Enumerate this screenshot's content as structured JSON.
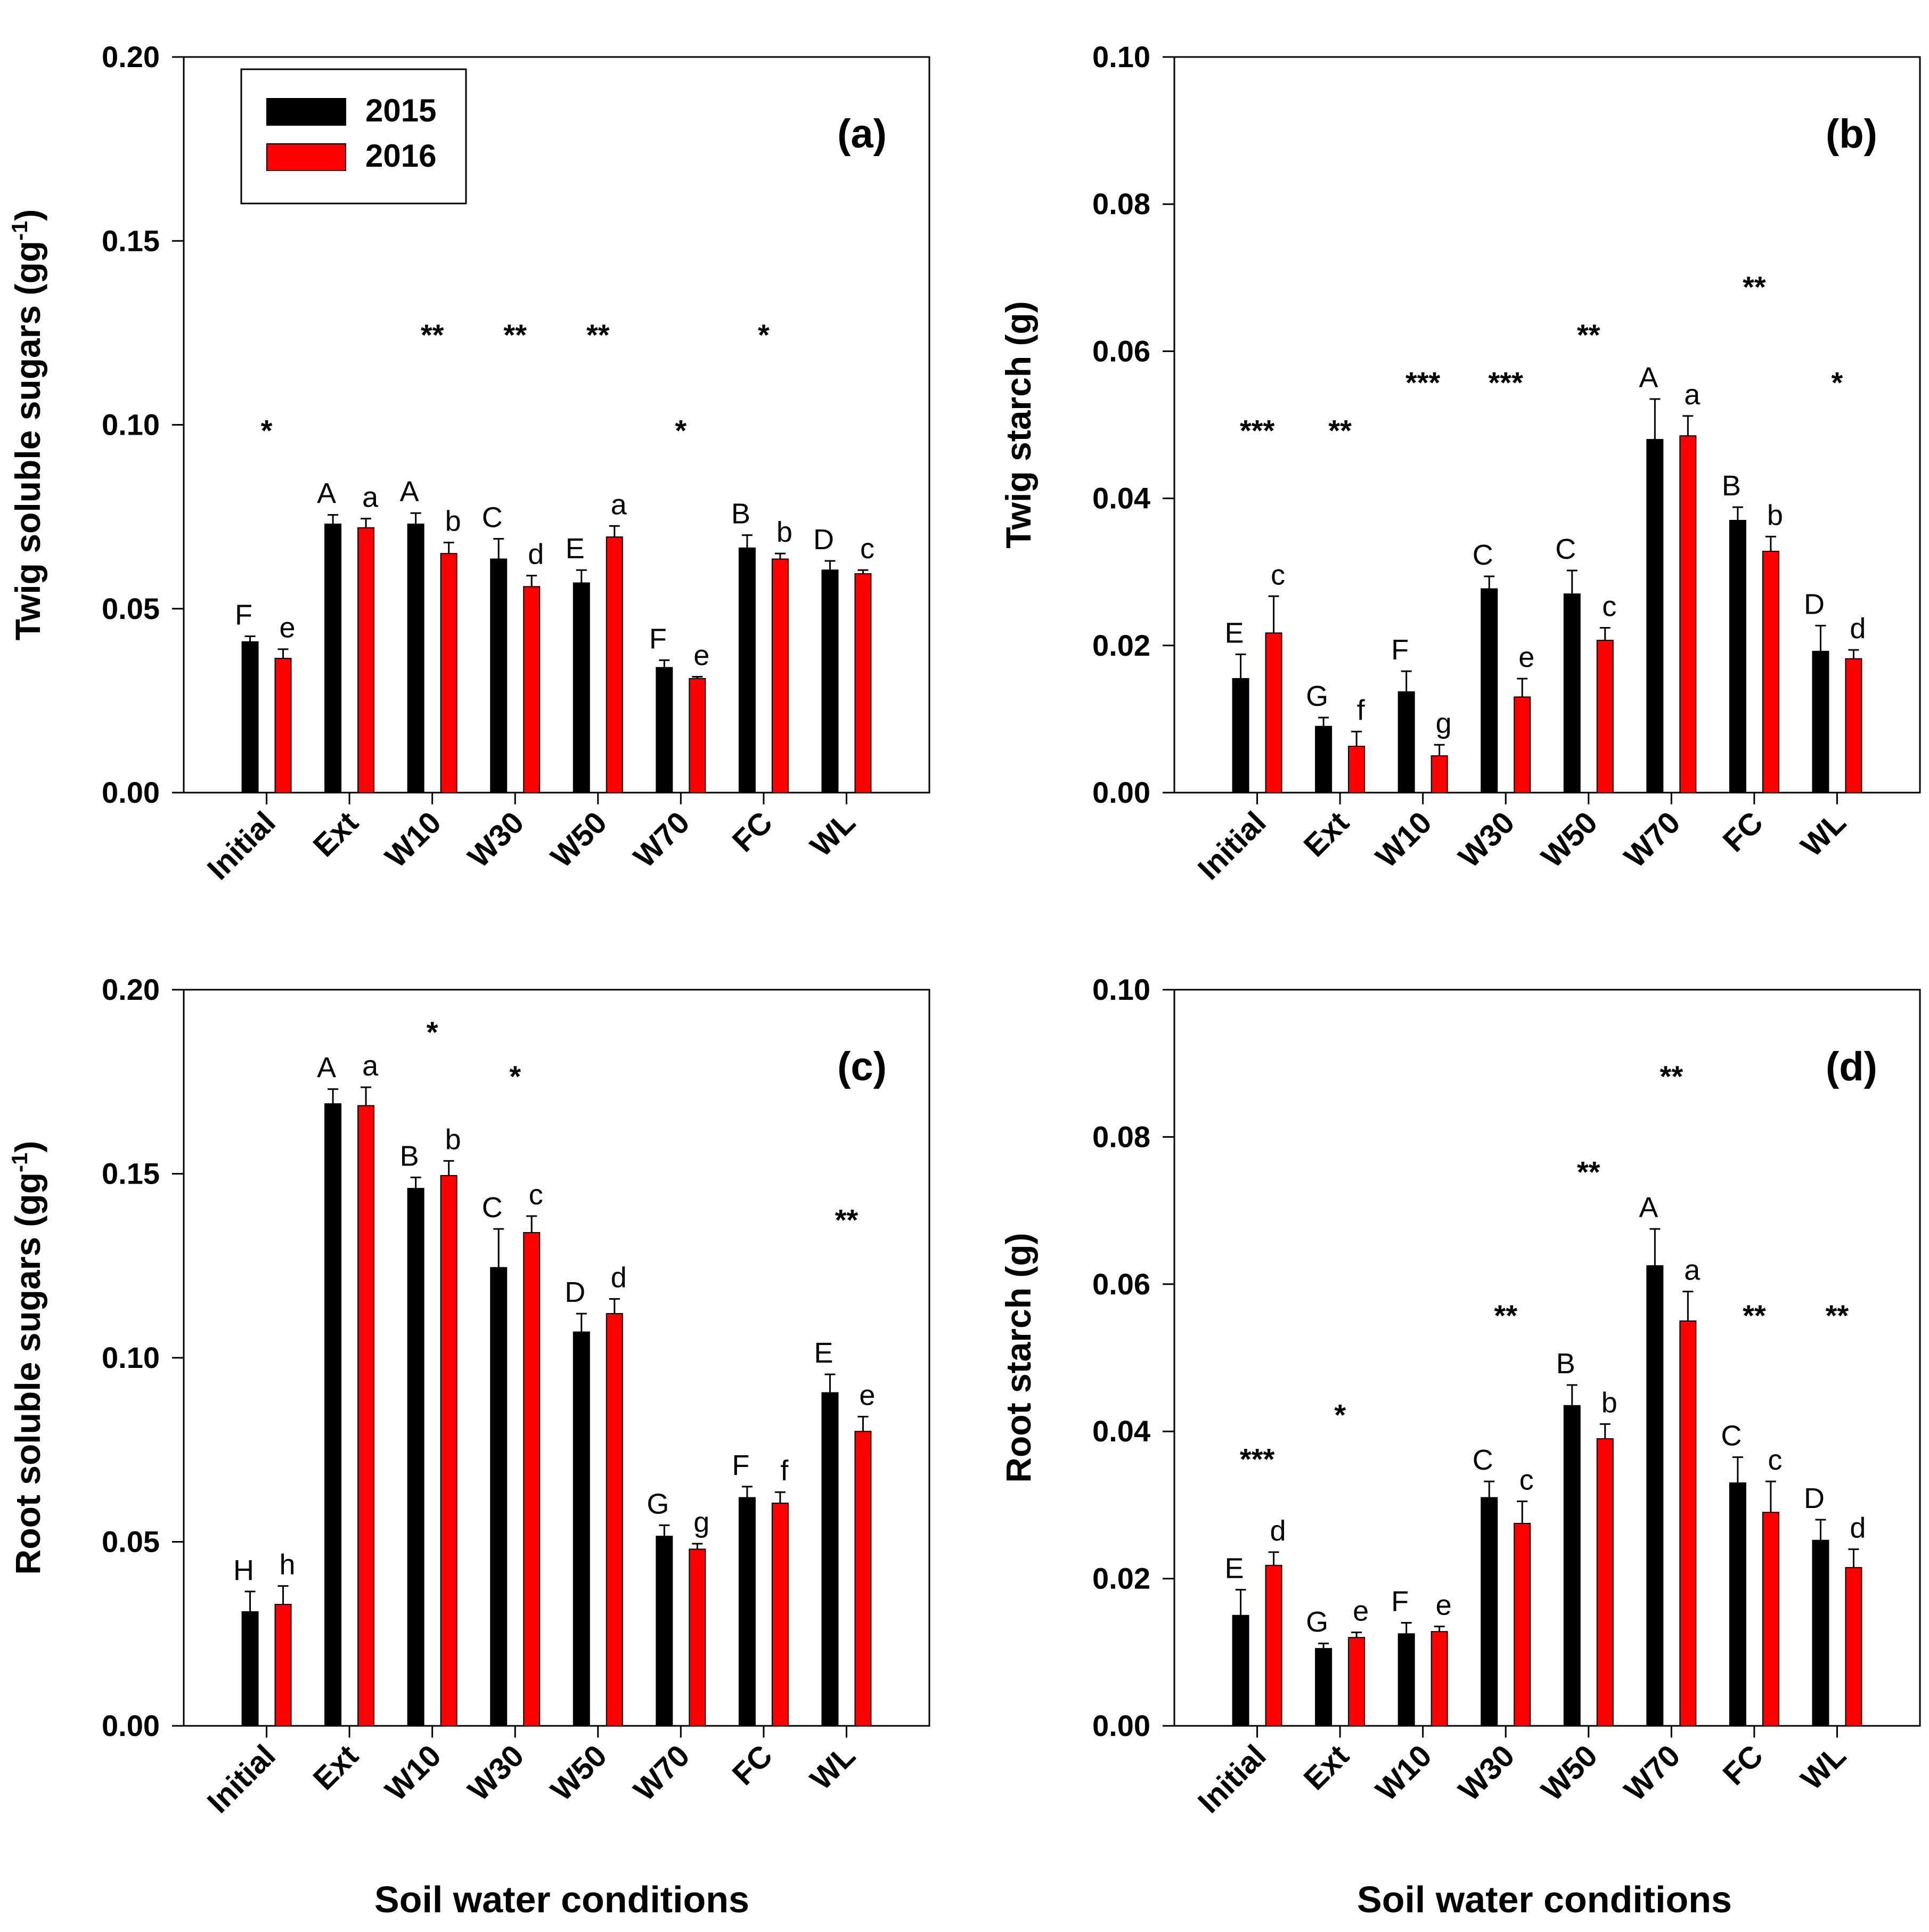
{
  "legend": {
    "entries": [
      {
        "label": "2015",
        "color": "#000000"
      },
      {
        "label": "2016",
        "color": "#ff0000"
      }
    ]
  },
  "x_axis_label": "Soil water conditions",
  "chart_data": [
    {
      "type": "bar",
      "panel": "(a)",
      "ylabel": "Twig soluble sugars (gg",
      "ylabel_sup": "-1",
      "ylabel_close": ")",
      "ylim": [
        0,
        0.2
      ],
      "yticks": [
        "0.00",
        "0.05",
        "0.10",
        "0.15",
        "0.20"
      ],
      "categories": [
        "Initial",
        "Ext",
        "W10",
        "W30",
        "W50",
        "W70",
        "FC",
        "WL"
      ],
      "series": [
        {
          "name": "2015",
          "color": "#000000",
          "values": [
            0.041,
            0.073,
            0.073,
            0.0635,
            0.057,
            0.034,
            0.0665,
            0.0605
          ],
          "errors": [
            0.0015,
            0.0025,
            0.003,
            0.0055,
            0.0035,
            0.002,
            0.0035,
            0.0025
          ],
          "letters": [
            "F",
            "A",
            "A",
            "C",
            "E",
            "F",
            "B",
            "D"
          ]
        },
        {
          "name": "2016",
          "color": "#ff0000",
          "values": [
            0.0365,
            0.072,
            0.065,
            0.056,
            0.0695,
            0.031,
            0.0635,
            0.0595
          ],
          "errors": [
            0.0025,
            0.0025,
            0.003,
            0.003,
            0.003,
            0.0005,
            0.0015,
            0.001
          ],
          "letters": [
            "e",
            "a",
            "b",
            "d",
            "a",
            "e",
            "b",
            "c"
          ]
        }
      ],
      "significance": [
        "*",
        "",
        "**",
        "**",
        "**",
        "*",
        "*",
        ""
      ],
      "significance_values": [
        0.1,
        null,
        0.126,
        0.126,
        0.126,
        0.1,
        0.126,
        null
      ]
    },
    {
      "type": "bar",
      "panel": "(b)",
      "ylabel": "Twig starch (g)",
      "ylim": [
        0,
        0.1
      ],
      "yticks": [
        "0.00",
        "0.02",
        "0.04",
        "0.06",
        "0.08",
        "0.10"
      ],
      "categories": [
        "Initial",
        "Ext",
        "W10",
        "W30",
        "W50",
        "W70",
        "FC",
        "WL"
      ],
      "series": [
        {
          "name": "2015",
          "color": "#000000",
          "values": [
            0.0155,
            0.009,
            0.0137,
            0.0277,
            0.027,
            0.048,
            0.037,
            0.0192
          ],
          "errors": [
            0.0033,
            0.0012,
            0.0028,
            0.0017,
            0.0032,
            0.0055,
            0.0018,
            0.0035
          ],
          "letters": [
            "E",
            "G",
            "F",
            "C",
            "C",
            "A",
            "B",
            "D"
          ]
        },
        {
          "name": "2016",
          "color": "#ff0000",
          "values": [
            0.0217,
            0.0063,
            0.005,
            0.013,
            0.0207,
            0.0485,
            0.0328,
            0.0182
          ],
          "errors": [
            0.005,
            0.002,
            0.0015,
            0.0025,
            0.0017,
            0.0027,
            0.002,
            0.0012
          ],
          "letters": [
            "c",
            "f",
            "g",
            "e",
            "c",
            "a",
            "b",
            "d"
          ]
        }
      ],
      "significance": [
        "***",
        "**",
        "***",
        "***",
        "**",
        "",
        "**",
        "*"
      ],
      "significance_values": [
        0.05,
        0.05,
        0.0565,
        0.0565,
        0.063,
        null,
        0.0695,
        0.0565
      ]
    },
    {
      "type": "bar",
      "panel": "(c)",
      "ylabel": "Root soluble sugars (gg",
      "ylabel_sup": "-1",
      "ylabel_close": ")",
      "ylim": [
        0,
        0.2
      ],
      "yticks": [
        "0.00",
        "0.05",
        "0.10",
        "0.15",
        "0.20"
      ],
      "categories": [
        "Initial",
        "Ext",
        "W10",
        "W30",
        "W50",
        "W70",
        "FC",
        "WL"
      ],
      "series": [
        {
          "name": "2015",
          "color": "#000000",
          "values": [
            0.031,
            0.169,
            0.146,
            0.1245,
            0.107,
            0.0515,
            0.062,
            0.0905
          ],
          "errors": [
            0.0055,
            0.004,
            0.003,
            0.0105,
            0.005,
            0.003,
            0.003,
            0.005
          ],
          "letters": [
            "H",
            "A",
            "B",
            "C",
            "D",
            "G",
            "F",
            "E"
          ]
        },
        {
          "name": "2016",
          "color": "#ff0000",
          "values": [
            0.033,
            0.1685,
            0.1495,
            0.134,
            0.112,
            0.048,
            0.0605,
            0.08
          ],
          "errors": [
            0.005,
            0.005,
            0.004,
            0.0045,
            0.004,
            0.0015,
            0.003,
            0.004
          ],
          "letters": [
            "h",
            "a",
            "b",
            "c",
            "d",
            "g",
            "f",
            "e"
          ]
        }
      ],
      "significance": [
        "",
        "",
        "*",
        "*",
        "",
        "",
        "",
        "**"
      ],
      "significance_values": [
        null,
        null,
        0.19,
        0.178,
        null,
        null,
        null,
        0.139
      ]
    },
    {
      "type": "bar",
      "panel": "(d)",
      "ylabel": "Root starch (g)",
      "ylim": [
        0,
        0.1
      ],
      "yticks": [
        "0.00",
        "0.02",
        "0.04",
        "0.06",
        "0.08",
        "0.10"
      ],
      "categories": [
        "Initial",
        "Ext",
        "W10",
        "W30",
        "W50",
        "W70",
        "FC",
        "WL"
      ],
      "series": [
        {
          "name": "2015",
          "color": "#000000",
          "values": [
            0.015,
            0.0105,
            0.0125,
            0.031,
            0.0435,
            0.0625,
            0.033,
            0.0252
          ],
          "errors": [
            0.0035,
            0.0007,
            0.0015,
            0.0022,
            0.0028,
            0.005,
            0.0035,
            0.0028
          ],
          "letters": [
            "E",
            "G",
            "F",
            "C",
            "B",
            "A",
            "C",
            "D"
          ]
        },
        {
          "name": "2016",
          "color": "#ff0000",
          "values": [
            0.0218,
            0.012,
            0.0128,
            0.0275,
            0.039,
            0.055,
            0.029,
            0.0215
          ],
          "errors": [
            0.0018,
            0.0007,
            0.0007,
            0.003,
            0.002,
            0.004,
            0.0042,
            0.0025
          ],
          "letters": [
            "d",
            "e",
            "e",
            "c",
            "b",
            "a",
            "c",
            "d"
          ]
        }
      ],
      "significance": [
        "***",
        "*",
        "",
        "**",
        "**",
        "**",
        "**",
        "**"
      ],
      "significance_values": [
        0.037,
        0.043,
        null,
        0.0565,
        0.076,
        0.089,
        0.0565,
        0.0565
      ]
    }
  ]
}
